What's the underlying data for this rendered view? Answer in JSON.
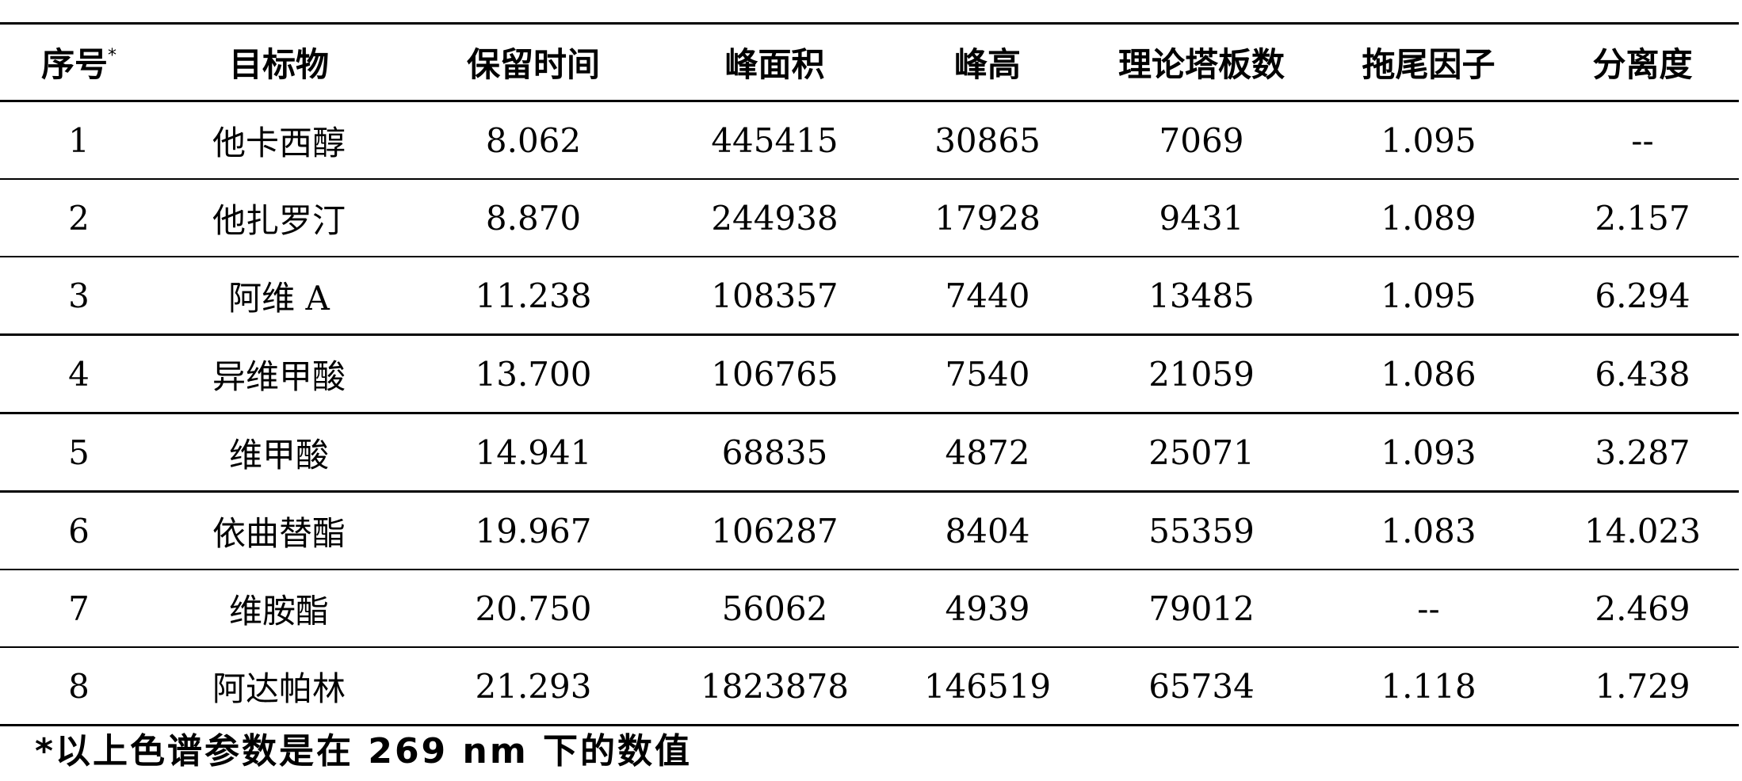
{
  "table": {
    "headers": [
      "序号",
      "目标物",
      "保留时间",
      "峰面积",
      "峰高",
      "理论塔板数",
      "拖尾因子",
      "分离度"
    ],
    "header_marker": "*",
    "rows": [
      [
        "1",
        "他卡西醇",
        "8.062",
        "445415",
        "30865",
        "7069",
        "1.095",
        "--"
      ],
      [
        "2",
        "他扎罗汀",
        "8.870",
        "244938",
        "17928",
        "9431",
        "1.089",
        "2.157"
      ],
      [
        "3",
        "阿维 A",
        "11.238",
        "108357",
        "7440",
        "13485",
        "1.095",
        "6.294"
      ],
      [
        "4",
        "异维甲酸",
        "13.700",
        "106765",
        "7540",
        "21059",
        "1.086",
        "6.438"
      ],
      [
        "5",
        "维甲酸",
        "14.941",
        "68835",
        "4872",
        "25071",
        "1.093",
        "3.287"
      ],
      [
        "6",
        "依曲替酯",
        "19.967",
        "106287",
        "8404",
        "55359",
        "1.083",
        "14.023"
      ],
      [
        "7",
        "维胺酯",
        "20.750",
        "56062",
        "4939",
        "79012",
        "--",
        "2.469"
      ],
      [
        "8",
        "阿达帕林",
        "21.293",
        "1823878",
        "146519",
        "65734",
        "1.118",
        "1.729"
      ]
    ]
  },
  "footnote": "*以上色谱参数是在 269 nm 下的数值"
}
